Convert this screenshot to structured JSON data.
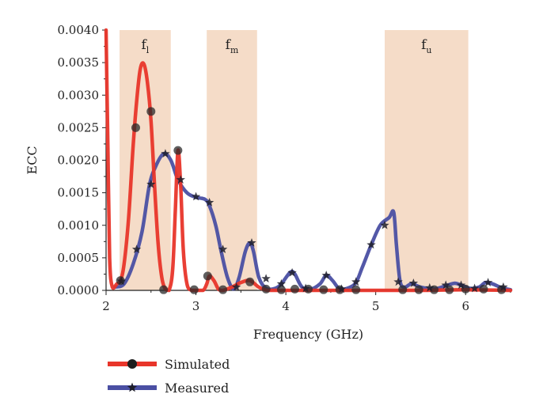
{
  "chart_data": {
    "type": "line",
    "xlabel": "Frequency (GHz)",
    "ylabel": "ECC",
    "xlim": [
      2,
      6.5
    ],
    "ylim": [
      0,
      0.004
    ],
    "xticks": [
      "2",
      "3",
      "4",
      "5",
      "6"
    ],
    "yticks": [
      "0.0000",
      "0.0005",
      "0.0010",
      "0.0015",
      "0.0020",
      "0.0025",
      "0.0030",
      "0.0035",
      "0.0040"
    ],
    "bands": [
      {
        "base": "f",
        "sub": "l",
        "x0": 2.15,
        "x1": 2.72
      },
      {
        "base": "f",
        "sub": "m",
        "x0": 3.12,
        "x1": 3.68
      },
      {
        "base": "f",
        "sub": "u",
        "x0": 5.1,
        "x1": 6.03
      }
    ],
    "band_color": "#f5dcc8",
    "series": [
      {
        "name": "Simulated",
        "color": "#e8352a",
        "marker": "circle",
        "points": [
          [
            2.0,
            0.004
          ],
          [
            2.02,
            0.0022
          ],
          [
            2.04,
            0.0005
          ],
          [
            2.07,
            5e-05
          ],
          [
            2.12,
            0.0001
          ],
          [
            2.16,
            0.00015
          ],
          [
            2.2,
            0.0004
          ],
          [
            2.25,
            0.0011
          ],
          [
            2.3,
            0.0022
          ],
          [
            2.34,
            0.0029
          ],
          [
            2.38,
            0.0034
          ],
          [
            2.42,
            0.00348
          ],
          [
            2.46,
            0.0032
          ],
          [
            2.5,
            0.0026
          ],
          [
            2.54,
            0.0016
          ],
          [
            2.58,
            0.0007
          ],
          [
            2.62,
            0.0002
          ],
          [
            2.66,
            2e-05
          ],
          [
            2.7,
            0.0
          ],
          [
            2.74,
            0.0003
          ],
          [
            2.77,
            0.0012
          ],
          [
            2.8,
            0.00215
          ],
          [
            2.83,
            0.0016
          ],
          [
            2.86,
            0.0006
          ],
          [
            2.9,
            0.0001
          ],
          [
            2.95,
            0.0
          ],
          [
            3.0,
            0.0
          ],
          [
            3.08,
            0.0
          ],
          [
            3.12,
            0.0001
          ],
          [
            3.15,
            0.00022
          ],
          [
            3.2,
            0.00015
          ],
          [
            3.25,
            2e-05
          ],
          [
            3.3,
            0.0
          ],
          [
            3.4,
            5e-05
          ],
          [
            3.5,
            0.00012
          ],
          [
            3.6,
            0.00015
          ],
          [
            3.7,
            5e-05
          ],
          [
            3.8,
            0.0
          ],
          [
            4.0,
            0.0
          ],
          [
            4.2,
            0.0
          ],
          [
            4.5,
            0.0
          ],
          [
            5.0,
            0.0
          ],
          [
            5.5,
            0.0
          ],
          [
            6.0,
            1e-05
          ],
          [
            6.5,
            0.0
          ]
        ],
        "marker_points": [
          [
            2.16,
            0.00015
          ],
          [
            2.33,
            0.0025
          ],
          [
            2.5,
            0.00275
          ],
          [
            2.64,
            1e-05
          ],
          [
            2.8,
            0.00215
          ],
          [
            2.98,
            1e-05
          ],
          [
            3.13,
            0.00022
          ],
          [
            3.3,
            1e-05
          ],
          [
            3.6,
            0.00013
          ],
          [
            3.78,
            2e-05
          ],
          [
            3.95,
            1e-05
          ],
          [
            4.1,
            2e-05
          ],
          [
            4.25,
            2e-05
          ],
          [
            4.42,
            1e-05
          ],
          [
            4.6,
            1e-05
          ],
          [
            4.78,
            1e-05
          ],
          [
            5.3,
            1e-05
          ],
          [
            5.48,
            1e-05
          ],
          [
            5.65,
            1e-05
          ],
          [
            5.82,
            1e-05
          ],
          [
            6.0,
            2e-05
          ],
          [
            6.2,
            2e-05
          ],
          [
            6.4,
            1e-05
          ]
        ]
      },
      {
        "name": "Measured",
        "color": "#4a4fa3",
        "marker": "star",
        "points": [
          [
            2.1,
            5e-05
          ],
          [
            2.2,
            0.0001
          ],
          [
            2.3,
            0.0004
          ],
          [
            2.4,
            0.0009
          ],
          [
            2.48,
            0.0016
          ],
          [
            2.55,
            0.0019
          ],
          [
            2.64,
            0.0021
          ],
          [
            2.72,
            0.002
          ],
          [
            2.8,
            0.0017
          ],
          [
            2.9,
            0.0015
          ],
          [
            3.0,
            0.00143
          ],
          [
            3.1,
            0.0014
          ],
          [
            3.15,
            0.0013
          ],
          [
            3.22,
            0.001
          ],
          [
            3.28,
            0.0006
          ],
          [
            3.35,
            0.0002
          ],
          [
            3.42,
            2e-05
          ],
          [
            3.48,
            0.0002
          ],
          [
            3.55,
            0.0006
          ],
          [
            3.6,
            0.00073
          ],
          [
            3.64,
            0.0006
          ],
          [
            3.7,
            0.0002
          ],
          [
            3.78,
            3e-05
          ],
          [
            3.88,
            3e-05
          ],
          [
            3.95,
            0.0001
          ],
          [
            4.05,
            0.00028
          ],
          [
            4.1,
            0.00025
          ],
          [
            4.18,
            5e-05
          ],
          [
            4.28,
            2e-05
          ],
          [
            4.38,
            0.0001
          ],
          [
            4.45,
            0.00023
          ],
          [
            4.52,
            0.00015
          ],
          [
            4.6,
            2e-05
          ],
          [
            4.7,
            4e-05
          ],
          [
            4.78,
            0.00012
          ],
          [
            4.85,
            0.00035
          ],
          [
            4.95,
            0.0007
          ],
          [
            5.05,
            0.001
          ],
          [
            5.15,
            0.00112
          ],
          [
            5.2,
            0.0012
          ],
          [
            5.23,
            0.0007
          ],
          [
            5.27,
            0.00015
          ],
          [
            5.32,
            5e-05
          ],
          [
            5.4,
            0.0001
          ],
          [
            5.5,
            5e-05
          ],
          [
            5.65,
            2e-05
          ],
          [
            5.8,
            8e-05
          ],
          [
            5.88,
            0.00011
          ],
          [
            5.95,
            8e-05
          ],
          [
            6.05,
            3e-05
          ],
          [
            6.15,
            5e-05
          ],
          [
            6.22,
            0.00012
          ],
          [
            6.3,
            0.0001
          ],
          [
            6.4,
            4e-05
          ],
          [
            6.5,
            1e-05
          ]
        ],
        "marker_points": [
          [
            2.17,
            0.00014
          ],
          [
            2.34,
            0.00063
          ],
          [
            2.5,
            0.00163
          ],
          [
            2.66,
            0.0021
          ],
          [
            2.83,
            0.0017
          ],
          [
            3.0,
            0.00144
          ],
          [
            3.15,
            0.00135
          ],
          [
            3.3,
            0.00063
          ],
          [
            3.45,
            5e-05
          ],
          [
            3.62,
            0.00073
          ],
          [
            3.78,
            0.00018
          ],
          [
            3.95,
            0.0001
          ],
          [
            4.07,
            0.00027
          ],
          [
            4.22,
            3e-05
          ],
          [
            4.45,
            0.00023
          ],
          [
            4.62,
            2e-05
          ],
          [
            4.78,
            0.00013
          ],
          [
            4.95,
            0.0007
          ],
          [
            5.1,
            0.001
          ],
          [
            5.25,
            0.00013
          ],
          [
            5.42,
            0.00011
          ],
          [
            5.6,
            4e-05
          ],
          [
            5.78,
            8e-05
          ],
          [
            5.95,
            8e-05
          ],
          [
            6.1,
            3e-05
          ],
          [
            6.25,
            0.00012
          ],
          [
            6.42,
            5e-05
          ]
        ]
      }
    ],
    "legend_position": "bottom-left"
  }
}
